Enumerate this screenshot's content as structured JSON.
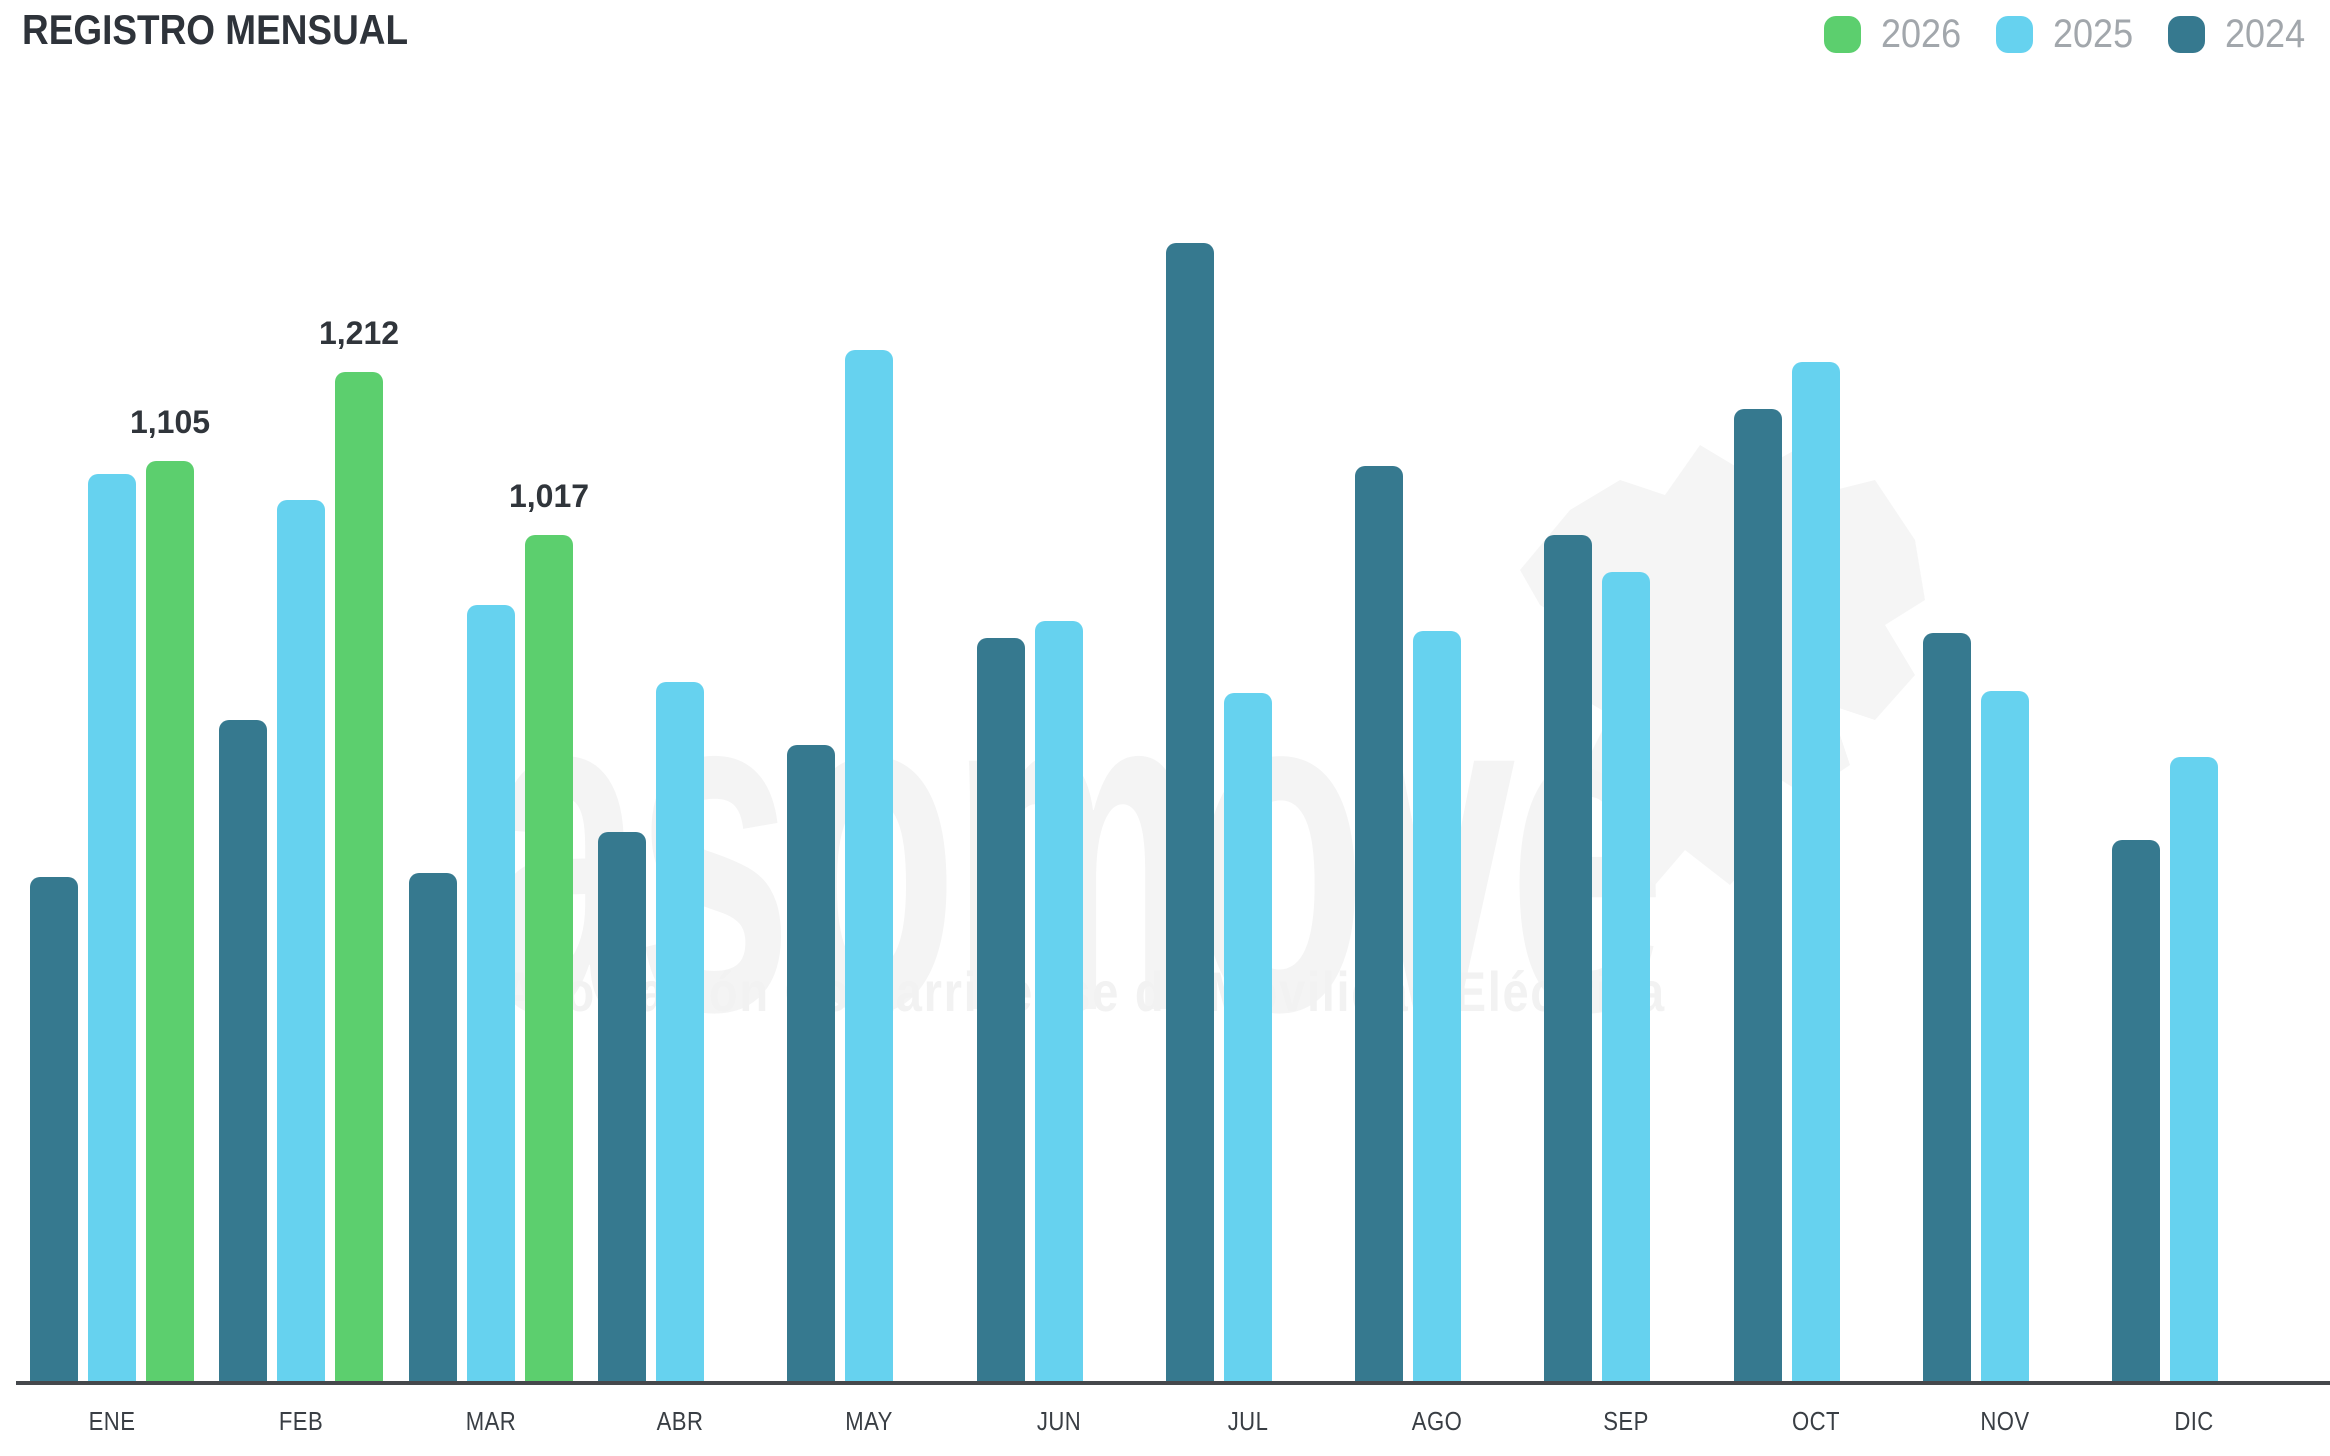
{
  "title": "REGISTRO MENSUAL",
  "legend": [
    {
      "label": "2026",
      "color": "#5ccf6e"
    },
    {
      "label": "2025",
      "color": "#66d2ef"
    },
    {
      "label": "2024",
      "color": "#36798f"
    }
  ],
  "watermark": {
    "word": "asomove",
    "tagline": "Asociación Costarricense de Movilidad Eléctrica"
  },
  "colors": {
    "green_2026": "#5ccf6e",
    "blue_2025": "#66d2ef",
    "teal_2024": "#36798f",
    "title_text": "#2e333a",
    "axis_line": "#45484c",
    "month_label": "#393e44",
    "legend_label": "#a2a7ac",
    "value_label": "#30353b",
    "watermark": "#f4f4f4"
  },
  "chart_data": {
    "type": "bar",
    "title": "REGISTRO MENSUAL",
    "categories": [
      "ENE",
      "FEB",
      "MAR",
      "ABR",
      "MAY",
      "JUN",
      "JUL",
      "AGO",
      "SEP",
      "OCT",
      "NOV",
      "DIC"
    ],
    "series": [
      {
        "name": "2024",
        "color": "#36798f",
        "values": [
          607,
          795,
          612,
          661,
          765,
          893,
          1367,
          1099,
          1017,
          1168,
          899,
          651
        ]
      },
      {
        "name": "2025",
        "color": "#66d2ef",
        "values": [
          1090,
          1059,
          933,
          840,
          1239,
          914,
          827,
          902,
          973,
          1224,
          830,
          750
        ]
      },
      {
        "name": "2026",
        "color": "#5ccf6e",
        "values": [
          1105,
          1212,
          1017,
          null,
          null,
          null,
          null,
          null,
          null,
          null,
          null,
          null
        ]
      }
    ],
    "annotations": [
      {
        "month": "ENE",
        "series": "2026",
        "text": "1,105",
        "value": 1105
      },
      {
        "month": "FEB",
        "series": "2026",
        "text": "1,212",
        "value": 1212
      },
      {
        "month": "MAR",
        "series": "2026",
        "text": "1,017",
        "value": 1017
      }
    ],
    "xlabel": "",
    "ylabel": "",
    "ylim": [
      0,
      1460
    ],
    "grid": false,
    "y_axis_visible": false,
    "legend_position": "top-right",
    "legend_order": [
      "2026",
      "2025",
      "2024"
    ]
  }
}
